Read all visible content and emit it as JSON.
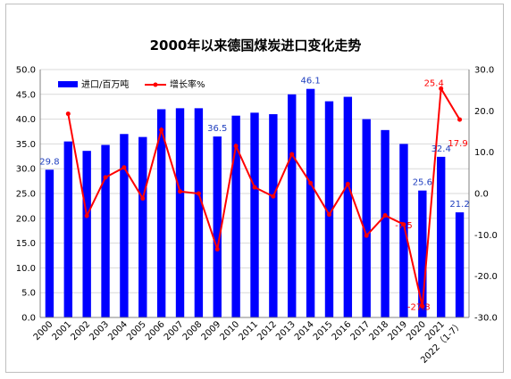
{
  "chart_data": {
    "type": "bar",
    "title": "2000年以来德国煤炭进口变化走势",
    "categories": [
      "2000",
      "2001",
      "2002",
      "2003",
      "2004",
      "2005",
      "2006",
      "2007",
      "2008",
      "2009",
      "2010",
      "2011",
      "2012",
      "2013",
      "2014",
      "2015",
      "2016",
      "2017",
      "2018",
      "2019",
      "2020",
      "2021",
      "2022（1-7）"
    ],
    "series": [
      {
        "name": "进口/百万吨",
        "kind": "bar",
        "axis": "left",
        "color": "#0000ff",
        "values": [
          29.8,
          35.5,
          33.6,
          34.8,
          37.0,
          36.4,
          42.0,
          42.2,
          42.2,
          36.5,
          40.7,
          41.3,
          41.0,
          45.0,
          46.1,
          43.6,
          44.5,
          40.0,
          37.8,
          35.0,
          25.6,
          32.4,
          21.2
        ]
      },
      {
        "name": "增长率%",
        "kind": "line",
        "axis": "right",
        "color": "#ff0000",
        "values": [
          null,
          19.3,
          -5.4,
          3.9,
          6.3,
          -1.2,
          15.4,
          0.5,
          0.0,
          -13.5,
          11.5,
          1.5,
          -0.7,
          9.5,
          2.5,
          -5.1,
          2.3,
          -10.2,
          -5.3,
          -7.5,
          -27.3,
          25.4,
          17.9
        ]
      }
    ],
    "labels": {
      "bar": {
        "0": "29.8",
        "9": "36.5",
        "14": "46.1",
        "20": "25.6",
        "21": "32.4",
        "22": "21.2"
      },
      "rate": {
        "19": "-7.5",
        "20": "-27.3",
        "21": "25.4",
        "22": "17.9"
      }
    },
    "y_left": {
      "min": 0,
      "max": 50,
      "step": 5,
      "ticks": [
        "0.0",
        "5.0",
        "10.0",
        "15.0",
        "20.0",
        "25.0",
        "30.0",
        "35.0",
        "40.0",
        "45.0",
        "50.0"
      ]
    },
    "y_right": {
      "min": -30,
      "max": 30,
      "step": 10,
      "ticks": [
        "-30.0",
        "-20.0",
        "-10.0",
        "0.0",
        "10.0",
        "20.0",
        "30.0"
      ]
    },
    "grid": true,
    "legend_position": "top-left"
  }
}
